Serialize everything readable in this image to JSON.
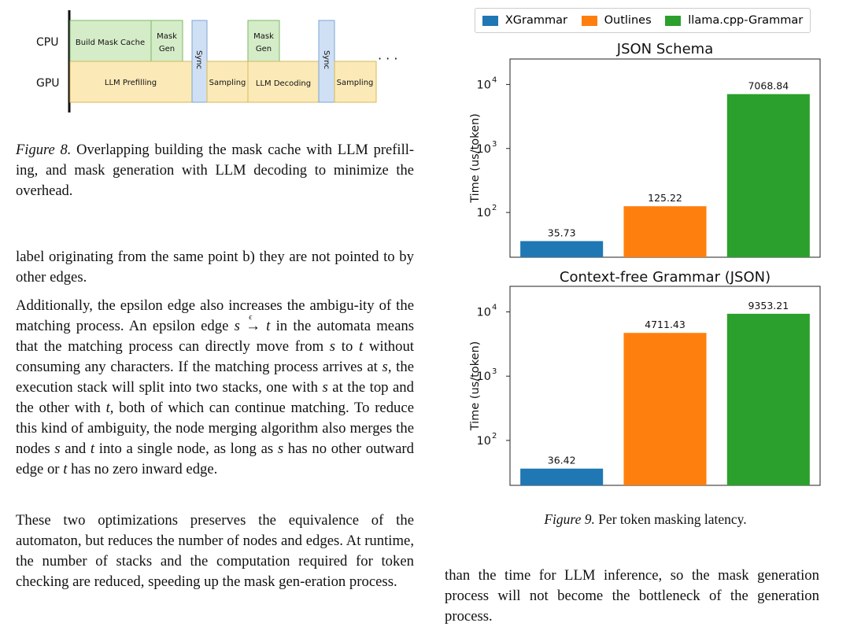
{
  "figure8": {
    "cpu_label": "CPU",
    "gpu_label": "GPU",
    "blocks": {
      "build_mask_cache": "Build Mask Cache",
      "mask_gen_1": [
        "Mask",
        "Gen"
      ],
      "mask_gen_2": [
        "Mask",
        "Gen"
      ],
      "sync_1": "Sync",
      "sync_2": "Sync",
      "llm_prefilling": "LLM Prefilling",
      "sampling_1": "Sampling",
      "llm_decoding": "LLM Decoding",
      "sampling_2": "Sampling",
      "ellipsis": "· · ·"
    },
    "caption_label": "Figure 8.",
    "caption_text": "Overlapping building the mask cache with LLM prefill-ing, and mask generation with LLM decoding to minimize the overhead."
  },
  "text": {
    "p1": "label originating from the same point b) they are not pointed to by other edges.",
    "p2_a": "Additionally, the epsilon edge also increases the ambigu-ity of the matching process. An epsilon edge ",
    "p2_s1": "s",
    "p2_arrow": "→",
    "p2_eps": "ϵ",
    "p2_t1": "t",
    "p2_b": " in the automata means that the matching process can directly move from ",
    "p2_s2": "s",
    "p2_c": " to ",
    "p2_t2": "t",
    "p2_d": " without consuming any characters. If the matching process arrives at ",
    "p2_s3": "s",
    "p2_e": ", the execution stack will split into two stacks, one with ",
    "p2_s4": "s",
    "p2_f": " at the top and the other with ",
    "p2_t3": "t",
    "p2_g": ", both of which can continue matching. To reduce this kind of ambiguity, the node merging algorithm also merges the nodes ",
    "p2_s5": "s",
    "p2_h": " and ",
    "p2_t4": "t",
    "p2_i": " into a single node, as long as ",
    "p2_s6": "s",
    "p2_j": " has no other outward edge or ",
    "p2_t5": "t",
    "p2_k": " has no zero inward edge.",
    "p3": "These two optimizations preserves the equivalence of the automaton, but reduces the number of nodes and edges. At runtime, the number of stacks and the computation required for token checking are reduced, speeding up the mask gen-eration process.",
    "p4": "than the time for LLM inference, so the mask generation process will not become the bottleneck of the generation process."
  },
  "figure9": {
    "caption_label": "Figure 9.",
    "caption_text": "Per token masking latency."
  },
  "colors": {
    "xgrammar": "#1f77b4",
    "outlines": "#ff7f0e",
    "llama": "#2ca02c",
    "cpu_block": "#d4ecc8",
    "cpu_border": "#7cb86a",
    "gpu_block": "#fbeab8",
    "gpu_border": "#d6b85a",
    "sync_block": "#cfe0f5",
    "sync_border": "#7fa3cf"
  },
  "chart_data": [
    {
      "type": "bar",
      "title": "JSON Schema",
      "ylabel": "Time (us/token)",
      "yscale": "log",
      "ylim": [
        20,
        25000
      ],
      "yticks": [
        100,
        1000,
        10000
      ],
      "ytick_labels": [
        "10",
        "10",
        "10"
      ],
      "ytick_exponents": [
        "2",
        "3",
        "4"
      ],
      "categories": [
        "XGrammar",
        "Outlines",
        "llama.cpp-Grammar"
      ],
      "values": [
        35.73,
        125.22,
        7068.84
      ],
      "labels": [
        "35.73",
        "125.22",
        "7068.84"
      ],
      "legend": [
        "XGrammar",
        "Outlines",
        "llama.cpp-Grammar"
      ],
      "legend_position": "top"
    },
    {
      "type": "bar",
      "title": "Context-free Grammar (JSON)",
      "ylabel": "Time (us/token)",
      "yscale": "log",
      "ylim": [
        20,
        25000
      ],
      "yticks": [
        100,
        1000,
        10000
      ],
      "ytick_labels": [
        "10",
        "10",
        "10"
      ],
      "ytick_exponents": [
        "2",
        "3",
        "4"
      ],
      "categories": [
        "XGrammar",
        "Outlines",
        "llama.cpp-Grammar"
      ],
      "values": [
        36.42,
        4711.43,
        9353.21
      ],
      "labels": [
        "36.42",
        "4711.43",
        "9353.21"
      ]
    }
  ]
}
